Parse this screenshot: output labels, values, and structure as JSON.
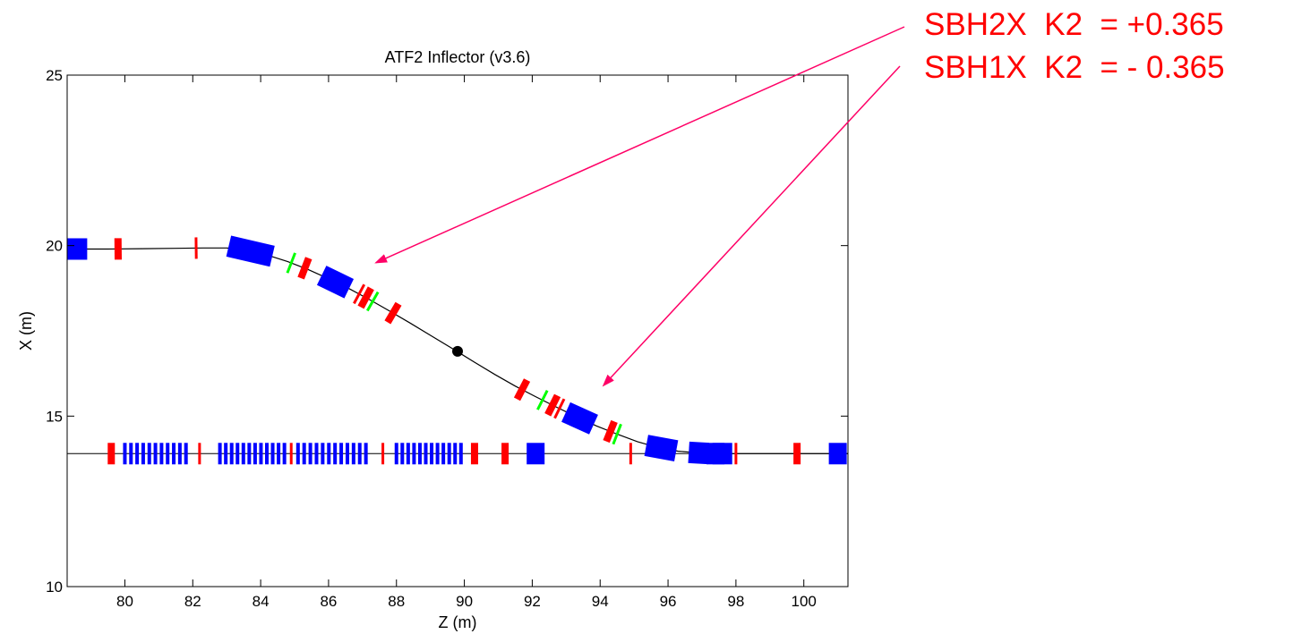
{
  "chart_data": {
    "type": "scatter",
    "title": "ATF2 Inflector (v3.6)",
    "xlabel": "Z (m)",
    "ylabel": "X (m)",
    "xlim": [
      78.3,
      101.3
    ],
    "ylim": [
      10,
      25
    ],
    "xticks": [
      80,
      82,
      84,
      86,
      88,
      90,
      92,
      94,
      96,
      98,
      100
    ],
    "yticks": [
      10,
      15,
      20,
      25
    ],
    "grid": false,
    "colors": {
      "bend": "#0000ff",
      "quad": "#ff0000",
      "sextupole": "#00ff00",
      "marker": "#000000",
      "annotation": "#ff0000",
      "arrow": "#ff0066"
    },
    "inflector_path": [
      [
        78.3,
        19.9
      ],
      [
        79.5,
        19.9
      ],
      [
        80.5,
        19.91
      ],
      [
        81.5,
        19.92
      ],
      [
        82.3,
        19.93
      ],
      [
        83.0,
        19.93
      ],
      [
        83.6,
        19.86
      ],
      [
        84.2,
        19.72
      ],
      [
        84.8,
        19.53
      ],
      [
        85.4,
        19.3
      ],
      [
        86.0,
        19.03
      ],
      [
        86.6,
        18.74
      ],
      [
        87.2,
        18.42
      ],
      [
        87.8,
        18.08
      ],
      [
        88.4,
        17.73
      ],
      [
        89.0,
        17.37
      ],
      [
        89.7,
        16.95
      ],
      [
        90.3,
        16.58
      ],
      [
        90.9,
        16.22
      ],
      [
        91.5,
        15.88
      ],
      [
        92.1,
        15.57
      ],
      [
        92.7,
        15.27
      ],
      [
        93.3,
        14.98
      ],
      [
        93.9,
        14.71
      ],
      [
        94.5,
        14.47
      ],
      [
        95.1,
        14.25
      ],
      [
        95.7,
        14.08
      ],
      [
        96.3,
        13.97
      ],
      [
        96.9,
        13.92
      ],
      [
        97.5,
        13.9
      ],
      [
        98.5,
        13.9
      ],
      [
        99.5,
        13.9
      ],
      [
        101.3,
        13.9
      ]
    ],
    "beamline_x": 13.9,
    "inflector_bends": [
      78.6,
      83.7,
      86.2,
      93.4,
      95.8,
      96.9,
      97.6
    ],
    "inflector_quads": [
      79.8,
      85.3,
      87.1,
      87.9,
      91.7,
      92.6,
      94.3
    ],
    "inflector_thin_quads": [
      82.1,
      86.9,
      92.8
    ],
    "inflector_sextupoles": [
      84.9,
      87.3,
      92.3,
      94.5
    ],
    "line_bend_groups": [
      {
        "start": 80.0,
        "end": 81.8,
        "count": 11
      },
      {
        "start": 82.8,
        "end": 84.7,
        "count": 12
      },
      {
        "start": 85.1,
        "end": 87.1,
        "count": 12
      },
      {
        "start": 88.0,
        "end": 89.9,
        "count": 12
      }
    ],
    "line_bends": [
      92.1,
      97.4,
      101.0
    ],
    "line_quads": [
      79.6,
      90.3,
      91.2,
      99.8
    ],
    "line_thin_quads": [
      82.2,
      84.9,
      87.6,
      94.9,
      98.0
    ],
    "ip_marker": [
      89.8,
      16.9
    ],
    "annotations": [
      {
        "text": "SBH2X  K2  = +0.365",
        "target": [
          87.4,
          19.5
        ]
      },
      {
        "text": "SBH1X  K2  = - 0.365",
        "target": [
          94.1,
          15.9
        ]
      }
    ]
  }
}
